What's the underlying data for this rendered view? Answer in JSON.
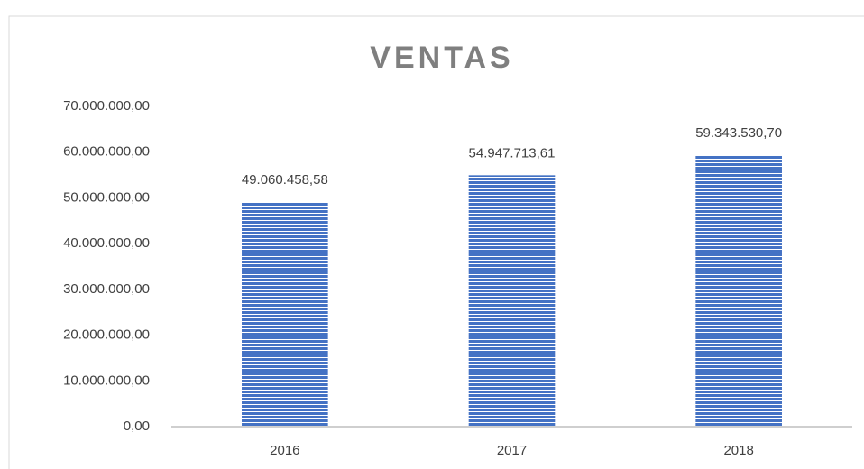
{
  "chart_data": {
    "type": "bar",
    "title": "VENTAS",
    "categories": [
      "2016",
      "2017",
      "2018"
    ],
    "values": [
      49060458.58,
      54947713.61,
      59343530.7
    ],
    "value_labels": [
      "49.060.458,58",
      "54.947.713,61",
      "59.343.530,70"
    ],
    "color": "#4472c4",
    "ylim": [
      0,
      70000000
    ],
    "yticks": [
      {
        "value": 0,
        "label": "0,00"
      },
      {
        "value": 10000000,
        "label": "10.000.000,00"
      },
      {
        "value": 20000000,
        "label": "20.000.000,00"
      },
      {
        "value": 30000000,
        "label": "30.000.000,00"
      },
      {
        "value": 40000000,
        "label": "40.000.000,00"
      },
      {
        "value": 50000000,
        "label": "50.000.000,00"
      },
      {
        "value": 60000000,
        "label": "60.000.000,00"
      },
      {
        "value": 70000000,
        "label": "70.000.000,00"
      }
    ],
    "grid": false
  }
}
